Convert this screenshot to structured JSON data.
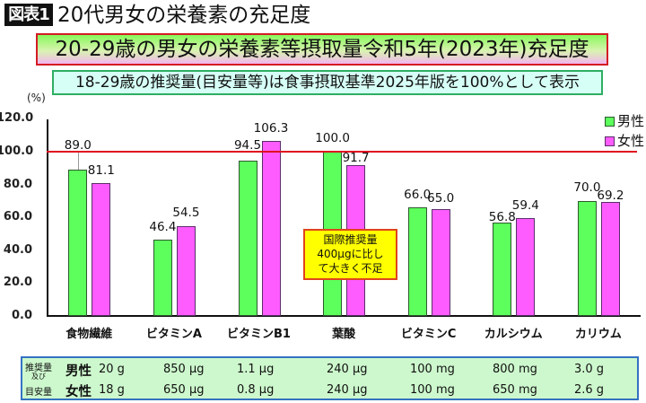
{
  "header": {
    "badge": "図表1",
    "title": "20代男女の栄養素の充足度"
  },
  "chart_title": "20-29歳の男女の栄養素等摂取量令和5年(2023年)充足度",
  "subtitle": "18-29歳の推奨量(目安量等)は食事摂取基準2025年版を100%として表示",
  "yaxis": {
    "unit": "(%)",
    "ticks": [
      "120.0",
      "100.0",
      "80.0",
      "60.0",
      "40.0",
      "20.0",
      "0.0"
    ]
  },
  "legend": [
    {
      "label": "男性",
      "color": "#5cff5c"
    },
    {
      "label": "女性",
      "color": "#ff5cff"
    }
  ],
  "annotation": {
    "lines": [
      "国際推奨量",
      "400μgに比し",
      "て大きく不足"
    ]
  },
  "chart_data": {
    "type": "bar",
    "title": "20-29歳の男女の栄養素等摂取量令和5年(2023年)充足度",
    "subtitle": "18-29歳の推奨量(目安量等)は食事摂取基準2025年版を100%として表示",
    "categories": [
      "食物繊維",
      "ビタミンA",
      "ビタミンB1",
      "葉酸",
      "ビタミンC",
      "カルシウム",
      "カリウム"
    ],
    "series": [
      {
        "name": "男性",
        "color": "#5cff5c",
        "values": [
          89.0,
          46.4,
          94.5,
          100.0,
          66.0,
          56.8,
          70.0
        ]
      },
      {
        "name": "女性",
        "color": "#ff5cff",
        "values": [
          81.1,
          54.5,
          106.3,
          91.7,
          65.0,
          59.4,
          69.2
        ]
      }
    ],
    "xlabel": "",
    "ylabel": "(%)",
    "ylim": [
      0,
      120
    ],
    "yticks": [
      0,
      20,
      40,
      60,
      80,
      100,
      120
    ],
    "reference_line": {
      "y": 100,
      "color": "#e01020"
    },
    "grid": false,
    "legend_position": "upper right",
    "data_labels": true,
    "annotations": [
      {
        "category": "葉酸",
        "text": "国際推奨量400μgに比して大きく不足"
      }
    ]
  },
  "table": {
    "row_header": [
      "推奨量",
      "及び",
      "目安量"
    ],
    "rows": [
      {
        "label": "男性",
        "values": [
          "20 g",
          "850 μg",
          "1.1 μg",
          "240 μg",
          "100 mg",
          "800 mg",
          "3.0 g"
        ]
      },
      {
        "label": "女性",
        "values": [
          "18 g",
          "650 μg",
          "0.8 μg",
          "240 μg",
          "100 mg",
          "650 mg",
          "2.6 g"
        ]
      }
    ]
  }
}
